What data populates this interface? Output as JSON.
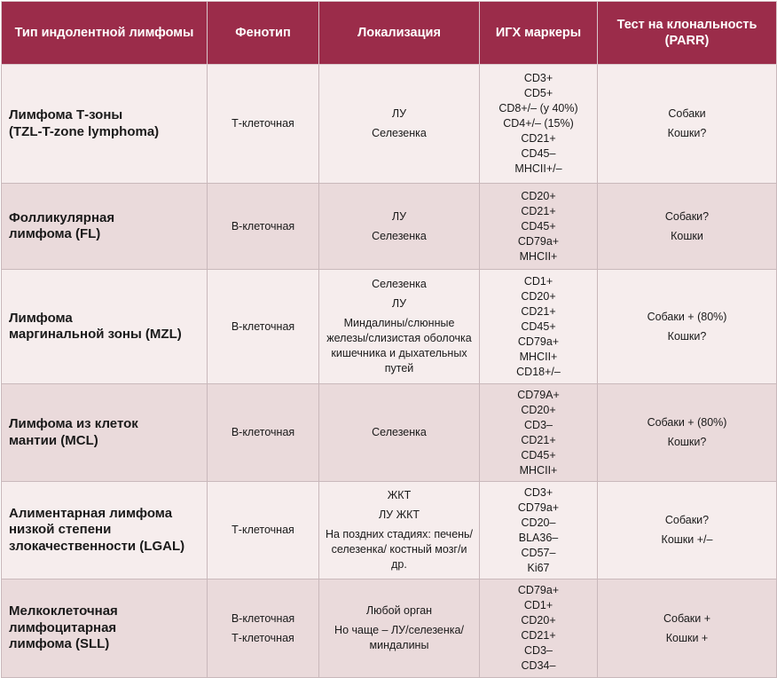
{
  "headers": [
    "Тип индолентной лимфомы",
    "Фенотип",
    "Локализация",
    "ИГХ маркеры",
    "Тест на клональность (PARR)"
  ],
  "rows": [
    {
      "name": [
        "Лимфома Т-зоны",
        "(TZL-T-zone lymphoma)"
      ],
      "phenotype": [
        "Т-клеточная"
      ],
      "localization": [
        "ЛУ",
        "Селезенка"
      ],
      "markers": [
        "CD3+",
        "CD5+",
        "CD8+/– (у 40%)",
        "CD4+/– (15%)",
        "CD21+",
        "CD45–",
        "MHCII+/–"
      ],
      "parr": [
        "Собаки",
        "Кошки?"
      ]
    },
    {
      "name": [
        "Фолликулярная",
        "лимфома (FL)"
      ],
      "phenotype": [
        "В-клеточная"
      ],
      "localization": [
        "ЛУ",
        "Селезенка"
      ],
      "markers": [
        "CD20+",
        "CD21+",
        "CD45+",
        "CD79a+",
        "MHCII+"
      ],
      "parr": [
        "Собаки?",
        "Кошки"
      ]
    },
    {
      "name": [
        "Лимфома",
        "маргинальной зоны (MZL)"
      ],
      "phenotype": [
        "В-клеточная"
      ],
      "localization": [
        "Селезенка",
        "ЛУ",
        "Миндалины/слюнные железы/слизистая оболочка кишечника и дыхательных путей"
      ],
      "markers": [
        "CD1+",
        "CD20+",
        "CD21+",
        "CD45+",
        "CD79a+",
        "MHCII+",
        "CD18+/–"
      ],
      "parr": [
        "Собаки + (80%)",
        "Кошки?"
      ]
    },
    {
      "name": [
        "Лимфома из клеток",
        "мантии (MCL)"
      ],
      "phenotype": [
        "В-клеточная"
      ],
      "localization": [
        "Селезенка"
      ],
      "markers": [
        "CD79A+",
        "CD20+",
        "CD3–",
        "CD21+",
        "CD45+",
        "MHCII+"
      ],
      "parr": [
        "Собаки + (80%)",
        "Кошки?"
      ]
    },
    {
      "name": [
        "Алиментарная лимфома",
        "низкой степени",
        "злокачественности (LGAL)"
      ],
      "phenotype": [
        "Т-клеточная"
      ],
      "localization": [
        "ЖКТ",
        "ЛУ ЖКТ",
        "На поздних стадиях: печень/селезенка/ костный мозг/и др."
      ],
      "markers": [
        "CD3+",
        "CD79a+",
        "CD20–",
        "BLA36–",
        "CD57–",
        "Ki67"
      ],
      "parr": [
        "Собаки?",
        "Кошки +/–"
      ]
    },
    {
      "name": [
        "Мелкоклеточная",
        "лимфоцитарная",
        "лимфома (SLL)"
      ],
      "phenotype": [
        "В-клеточная",
        "Т-клеточная"
      ],
      "localization": [
        "Любой орган",
        "Но чаще – ЛУ/селезенка/ миндалины"
      ],
      "markers": [
        "CD79a+",
        "CD1+",
        "CD20+",
        "CD21+",
        "CD3–",
        "CD34–"
      ],
      "parr": [
        "Собаки +",
        "Кошки +"
      ]
    }
  ]
}
